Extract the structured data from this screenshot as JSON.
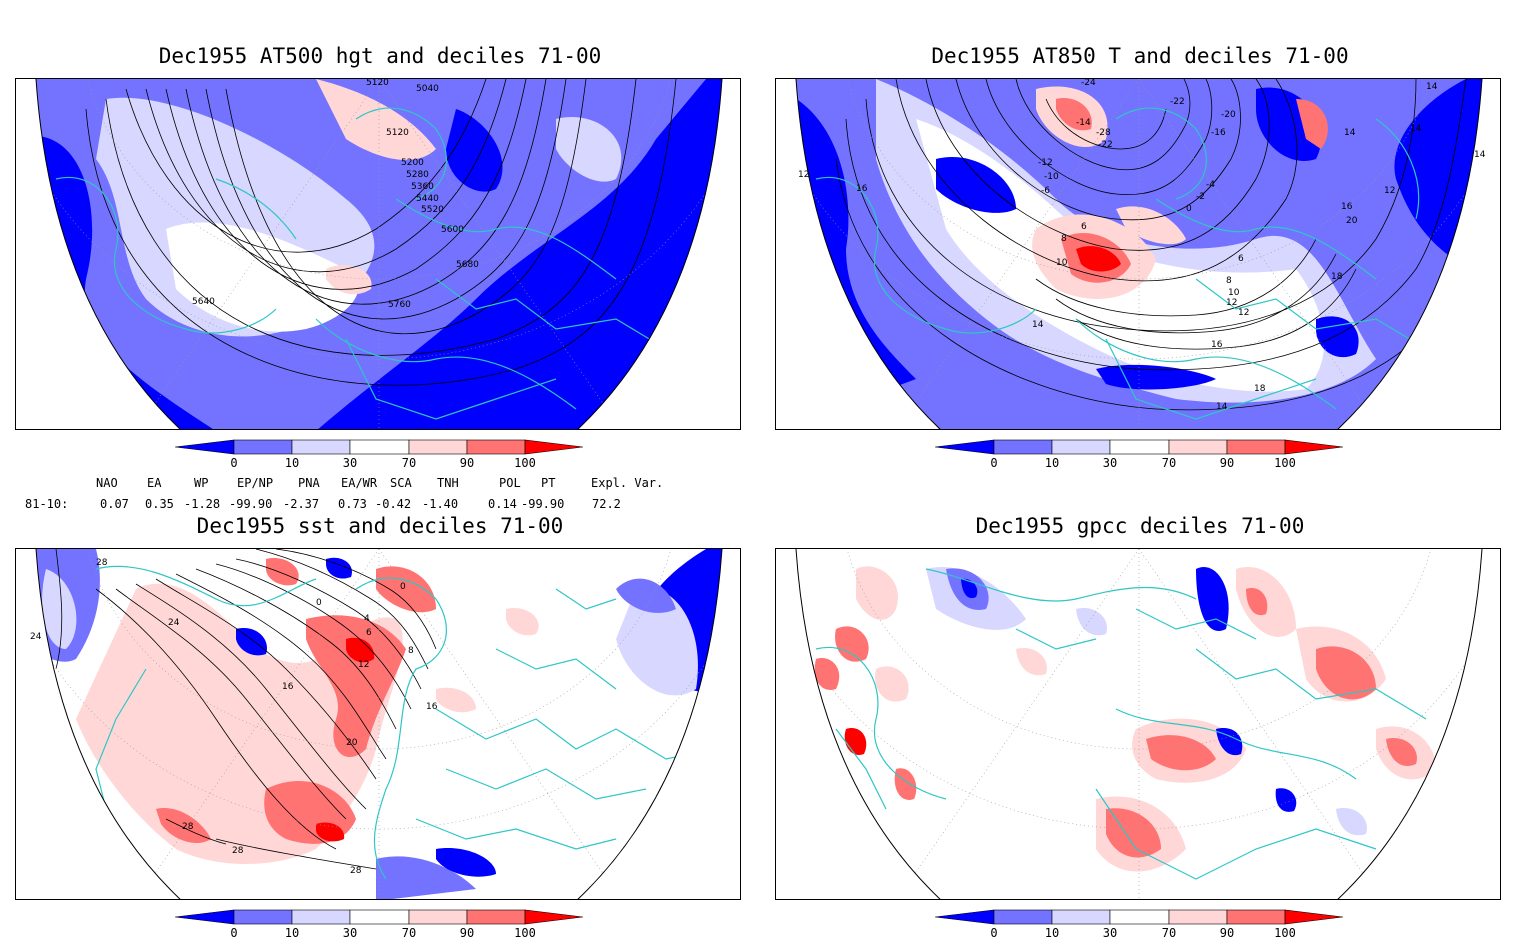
{
  "panels": [
    {
      "title": "Dec1955 AT500 hgt and deciles 71-00",
      "contour_labels": [
        "5120",
        "5040",
        "5120",
        "5200",
        "5280",
        "5360",
        "5440",
        "5520",
        "5600",
        "5680",
        "5760",
        "5640"
      ]
    },
    {
      "title": "Dec1955 AT850 T and deciles 71-00",
      "contour_labels": [
        "-24",
        "-22",
        "-20",
        "-16",
        "-14",
        "-28",
        "-22",
        "-12",
        "-10",
        "-6",
        "-4",
        "-2",
        "0",
        "6",
        "8",
        "10",
        "14",
        "16",
        "12",
        "14",
        "14",
        "14",
        "12",
        "14",
        "16",
        "20",
        "18",
        "16",
        "18",
        "14",
        "12",
        "8",
        "6",
        "10",
        "12"
      ]
    },
    {
      "title": "Dec1955 sst and deciles 71-00",
      "contour_labels": [
        "28",
        "24",
        "24",
        "0",
        "0",
        "4",
        "6",
        "8",
        "12",
        "16",
        "16",
        "20",
        "28",
        "28",
        "28"
      ]
    },
    {
      "title": "Dec1955 gpcc deciles 71-00",
      "contour_labels": []
    }
  ],
  "colorbar": {
    "ticks": [
      "0",
      "10",
      "30",
      "70",
      "90",
      "100"
    ],
    "colors": [
      "#0000ff",
      "#7373ff",
      "#d7d7ff",
      "#ffffff",
      "#ffd7d7",
      "#ff7373",
      "#ff0000"
    ]
  },
  "indices": {
    "headers": [
      "NAO",
      "EA",
      "WP",
      "EP/NP",
      "PNA",
      "EA/WR",
      "SCA",
      "TNH",
      "POL",
      "PT",
      "Expl. Var."
    ],
    "row_label": "81-10:",
    "values": [
      "0.07",
      "0.35",
      "-1.28",
      "-99.90",
      "-2.37",
      "0.73",
      "-0.42",
      "-1.40",
      "0.14",
      "-99.90",
      "72.2"
    ]
  },
  "colors": {
    "coast": "#2fc6c6",
    "deep_blue": "#0000ff",
    "mid_blue": "#7373ff",
    "light_blue": "#d7d7ff",
    "light_red": "#ffd7d7",
    "mid_red": "#ff7373",
    "deep_red": "#ff0000"
  }
}
